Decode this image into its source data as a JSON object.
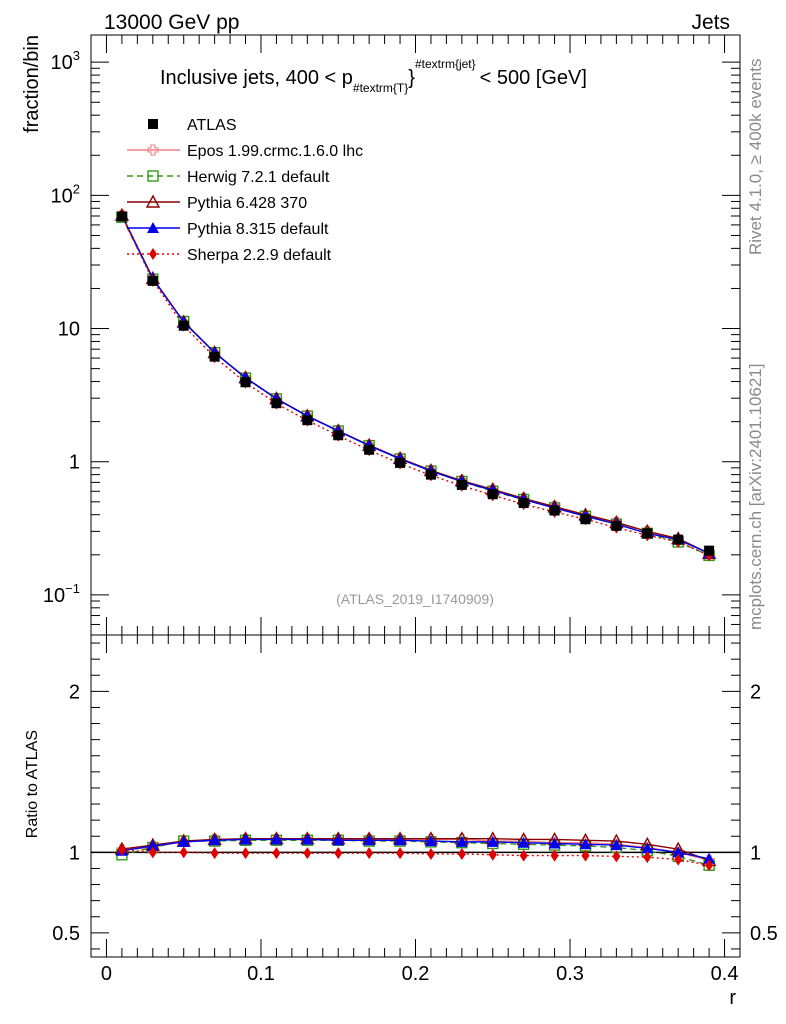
{
  "header": {
    "left": "13000 GeV pp",
    "right": "Jets"
  },
  "side_labels": {
    "rivet": "Rivet 4.1.0, ≥ 400k events",
    "mcplots": "mcplots.cern.ch [arXiv:2401.10621]"
  },
  "chart_data": [
    {
      "type": "line",
      "panel": "main",
      "title_parts": {
        "prefix": "Inclusive jets, 400 < p",
        "subscript": "#textrm{T}",
        "superscript": "#textrm{jet}",
        "suffix": "< 500 [GeV]"
      },
      "xlabel": "r",
      "ylabel": "fraction/bin",
      "yscale": "log",
      "xlim": [
        -0.01,
        0.41
      ],
      "ylim": [
        0.05,
        1600
      ],
      "x_ticks": [
        0,
        0.1,
        0.2,
        0.3,
        0.4
      ],
      "x_tick_labels": [
        "0",
        "0.1",
        "0.2",
        "0.3",
        "0.4"
      ],
      "y_ticks": [
        0.1,
        1,
        10,
        100,
        1000
      ],
      "y_tick_labels": [
        {
          "base": "10",
          "exp": "−1"
        },
        {
          "base": "1",
          "exp": ""
        },
        {
          "base": "10",
          "exp": ""
        },
        {
          "base": "10",
          "exp": "2"
        },
        {
          "base": "10",
          "exp": "3"
        }
      ],
      "analysis_label": "(ATLAS_2019_I1740909)",
      "x": [
        0.01,
        0.03,
        0.05,
        0.07,
        0.09,
        0.11,
        0.13,
        0.15,
        0.17,
        0.19,
        0.21,
        0.23,
        0.25,
        0.27,
        0.29,
        0.31,
        0.33,
        0.35,
        0.37,
        0.39
      ],
      "data": {
        "name": "ATLAS",
        "values": [
          69.5,
          22.8,
          10.5,
          6.15,
          3.95,
          2.75,
          2.05,
          1.58,
          1.23,
          0.98,
          0.8,
          0.67,
          0.57,
          0.49,
          0.43,
          0.37,
          0.33,
          0.29,
          0.26,
          0.215
        ]
      },
      "series": [
        {
          "name": "Epos 1.99.crmc.1.6.0 lhc",
          "color": "#f08080",
          "dash": "",
          "marker": "open-cross",
          "values": [
            70.5,
            23.5,
            11.2,
            6.6,
            4.25,
            2.98,
            2.21,
            1.71,
            1.33,
            1.06,
            0.86,
            0.72,
            0.61,
            0.53,
            0.46,
            0.39,
            0.35,
            0.3,
            0.26,
            0.205
          ]
        },
        {
          "name": "Herwig 7.2.1 default",
          "color": "#33991a",
          "dash": "6,4",
          "marker": "open-square",
          "values": [
            68.5,
            23.5,
            11.3,
            6.6,
            4.25,
            2.96,
            2.2,
            1.7,
            1.32,
            1.05,
            0.85,
            0.71,
            0.6,
            0.52,
            0.45,
            0.39,
            0.34,
            0.29,
            0.25,
            0.198
          ]
        },
        {
          "name": "Pythia 6.428 370",
          "color": "#8b0000",
          "dash": "",
          "marker": "open-triangle",
          "values": [
            71.0,
            23.8,
            11.2,
            6.6,
            4.28,
            2.98,
            2.21,
            1.71,
            1.33,
            1.06,
            0.86,
            0.72,
            0.62,
            0.53,
            0.46,
            0.4,
            0.35,
            0.3,
            0.265,
            0.205
          ]
        },
        {
          "name": "Pythia 8.315 default",
          "color": "#0000ee",
          "dash": "",
          "marker": "filled-triangle",
          "values": [
            70.5,
            23.8,
            11.2,
            6.6,
            4.27,
            2.97,
            2.2,
            1.7,
            1.32,
            1.05,
            0.85,
            0.71,
            0.61,
            0.52,
            0.45,
            0.39,
            0.34,
            0.29,
            0.26,
            0.205
          ]
        },
        {
          "name": "Sherpa 2.2.9 default",
          "color": "#e00000",
          "dash": "2,3",
          "marker": "filled-diamond",
          "values": [
            70.5,
            22.8,
            10.5,
            6.1,
            3.93,
            2.73,
            2.04,
            1.57,
            1.22,
            0.97,
            0.79,
            0.66,
            0.56,
            0.48,
            0.42,
            0.37,
            0.32,
            0.28,
            0.25,
            0.198
          ]
        }
      ]
    },
    {
      "type": "line",
      "panel": "ratio",
      "xlabel": "r",
      "ylabel": "Ratio to ATLAS",
      "xlim": [
        -0.01,
        0.41
      ],
      "ylim": [
        0.35,
        2.35
      ],
      "y_ticks": [
        0.5,
        1,
        2
      ],
      "y_tick_labels": [
        "0.5",
        "1",
        "2"
      ],
      "x": [
        0.01,
        0.03,
        0.05,
        0.07,
        0.09,
        0.11,
        0.13,
        0.15,
        0.17,
        0.19,
        0.21,
        0.23,
        0.25,
        0.27,
        0.29,
        0.31,
        0.33,
        0.35,
        0.37,
        0.39
      ],
      "series": [
        {
          "name": "Epos 1.99.crmc.1.6.0 lhc",
          "color": "#f08080",
          "dash": "",
          "marker": "open-cross",
          "values": [
            1.015,
            1.03,
            1.07,
            1.08,
            1.08,
            1.08,
            1.08,
            1.08,
            1.08,
            1.08,
            1.08,
            1.08,
            1.07,
            1.07,
            1.06,
            1.06,
            1.05,
            1.03,
            1.0,
            0.95
          ]
        },
        {
          "name": "Herwig 7.2.1 default",
          "color": "#33991a",
          "dash": "6,4",
          "marker": "open-square",
          "values": [
            0.985,
            1.03,
            1.07,
            1.07,
            1.075,
            1.075,
            1.075,
            1.075,
            1.07,
            1.07,
            1.065,
            1.06,
            1.055,
            1.05,
            1.045,
            1.04,
            1.03,
            1.01,
            0.975,
            0.92
          ]
        },
        {
          "name": "Pythia 6.428 370",
          "color": "#8b0000",
          "dash": "",
          "marker": "open-triangle",
          "values": [
            1.02,
            1.045,
            1.07,
            1.08,
            1.085,
            1.085,
            1.085,
            1.085,
            1.085,
            1.085,
            1.085,
            1.085,
            1.085,
            1.08,
            1.08,
            1.075,
            1.07,
            1.05,
            1.02,
            0.95
          ]
        },
        {
          "name": "Pythia 8.315 default",
          "color": "#0000ee",
          "dash": "",
          "marker": "filled-triangle",
          "values": [
            1.01,
            1.04,
            1.065,
            1.075,
            1.08,
            1.08,
            1.08,
            1.075,
            1.075,
            1.075,
            1.07,
            1.065,
            1.065,
            1.06,
            1.055,
            1.05,
            1.045,
            1.025,
            1.0,
            0.96
          ]
        },
        {
          "name": "Sherpa 2.2.9 default",
          "color": "#e00000",
          "dash": "2,3",
          "marker": "filled-diamond",
          "values": [
            1.015,
            1.0,
            1.0,
            0.995,
            0.995,
            0.995,
            0.995,
            0.995,
            0.995,
            0.995,
            0.99,
            0.99,
            0.985,
            0.98,
            0.98,
            0.98,
            0.975,
            0.97,
            0.955,
            0.92
          ]
        }
      ]
    }
  ]
}
